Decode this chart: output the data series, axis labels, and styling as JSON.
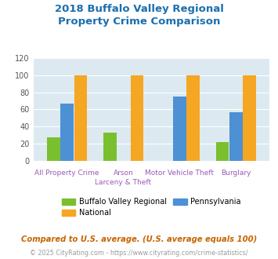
{
  "title": "2018 Buffalo Valley Regional\nProperty Crime Comparison",
  "title_color": "#1a6faf",
  "bvr_vals": [
    27,
    33,
    0,
    22
  ],
  "pa_vals": [
    67,
    0,
    75,
    57
  ],
  "nat_vals": [
    100,
    100,
    100,
    100
  ],
  "bar_color_bvr": "#7abf2e",
  "bar_color_pa": "#4d90d4",
  "bar_color_nat": "#f5a623",
  "ylim": [
    0,
    120
  ],
  "yticks": [
    0,
    20,
    40,
    60,
    80,
    100,
    120
  ],
  "plot_bg_color": "#dce9f0",
  "fig_bg_color": "#ffffff",
  "label_color": "#9b59b6",
  "label_fontsize": 6.5,
  "title_fontsize": 9.5,
  "legend_fontsize": 7.0,
  "footnote1": "Compared to U.S. average. (U.S. average equals 100)",
  "footnote2": "© 2025 CityRating.com - https://www.cityrating.com/crime-statistics/",
  "footnote1_color": "#c86400",
  "footnote2_color": "#9b9b9b",
  "footnote1_fontsize": 7.2,
  "footnote2_fontsize": 5.8
}
